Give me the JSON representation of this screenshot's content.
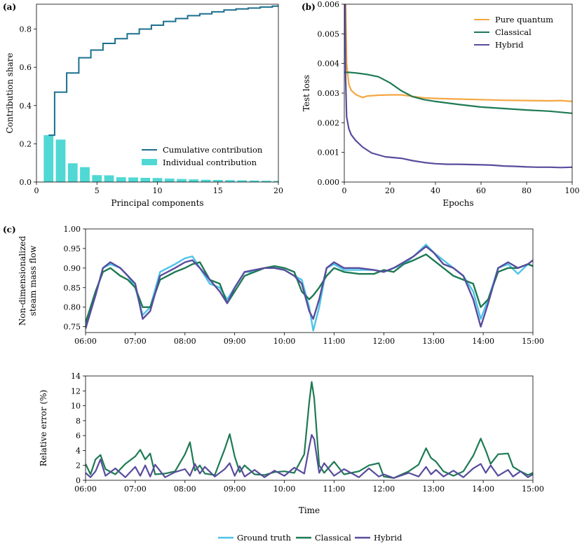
{
  "colors": {
    "cumulative": "#1b6f8f",
    "individual": "#4fd8d4",
    "pure_quantum": "#f5a742",
    "classical": "#1e7a53",
    "hybrid": "#584c9d",
    "ground_truth": "#4bc4e6"
  },
  "chart_data": [
    {
      "panel": "(a)",
      "type": "bar",
      "xlabel": "Principal components",
      "ylabel": "Contribution share",
      "xlim": [
        0,
        20
      ],
      "ylim": [
        0,
        0.93
      ],
      "xticks": [
        0,
        5,
        10,
        15,
        20
      ],
      "yticks": [
        0.0,
        0.2,
        0.4,
        0.6,
        0.8
      ],
      "ytick_labels": [
        "0.0",
        "0.2",
        "0.4",
        "0.6",
        "0.8"
      ],
      "components": [
        1,
        2,
        3,
        4,
        5,
        6,
        7,
        8,
        9,
        10,
        11,
        12,
        13,
        14,
        15,
        16,
        17,
        18,
        19,
        20
      ],
      "series": [
        {
          "name": "Cumulative contribution",
          "kind": "step",
          "values": [
            0.245,
            0.47,
            0.57,
            0.65,
            0.69,
            0.725,
            0.75,
            0.775,
            0.8,
            0.82,
            0.84,
            0.855,
            0.87,
            0.88,
            0.89,
            0.9,
            0.905,
            0.91,
            0.915,
            0.92
          ]
        },
        {
          "name": "Individual contribution",
          "kind": "bar",
          "values": [
            0.245,
            0.222,
            0.098,
            0.078,
            0.036,
            0.035,
            0.025,
            0.024,
            0.022,
            0.021,
            0.018,
            0.016,
            0.014,
            0.012,
            0.011,
            0.01,
            0.009,
            0.008,
            0.007,
            0.006
          ]
        }
      ],
      "legend_position": "lower-right"
    },
    {
      "panel": "(b)",
      "type": "line",
      "xlabel": "Epochs",
      "ylabel": "Test loss",
      "xlim": [
        0,
        100
      ],
      "ylim": [
        0,
        0.006
      ],
      "xticks": [
        0,
        20,
        40,
        60,
        80,
        100
      ],
      "yticks": [
        0.0,
        0.001,
        0.002,
        0.003,
        0.004,
        0.005,
        0.006
      ],
      "ytick_labels": [
        "0.000",
        "0.001",
        "0.002",
        "0.003",
        "0.004",
        "0.005",
        "0.006"
      ],
      "series": [
        {
          "name": "Pure quantum",
          "x": [
            0.5,
            1,
            2,
            3,
            5,
            8,
            10,
            15,
            20,
            25,
            30,
            35,
            40,
            50,
            60,
            70,
            80,
            90,
            95,
            100
          ],
          "y": [
            0.0065,
            0.004,
            0.0033,
            0.0031,
            0.00295,
            0.00285,
            0.0029,
            0.00293,
            0.00294,
            0.00294,
            0.00289,
            0.00284,
            0.00282,
            0.0028,
            0.00278,
            0.00276,
            0.00275,
            0.00274,
            0.00275,
            0.00272
          ]
        },
        {
          "name": "Classical",
          "x": [
            0,
            2,
            5,
            10,
            15,
            20,
            25,
            30,
            35,
            40,
            50,
            60,
            70,
            80,
            90,
            100
          ],
          "y": [
            0.0037,
            0.0037,
            0.00368,
            0.00363,
            0.00355,
            0.00335,
            0.00308,
            0.00288,
            0.00278,
            0.00272,
            0.00262,
            0.00253,
            0.00248,
            0.00243,
            0.00239,
            0.00232
          ]
        },
        {
          "name": "Hybrid",
          "x": [
            0.3,
            0.6,
            1,
            2,
            3,
            5,
            8,
            12,
            18,
            25,
            30,
            35,
            40,
            45,
            50,
            55,
            60,
            65,
            70,
            75,
            80,
            85,
            90,
            95,
            100
          ],
          "y": [
            0.0062,
            0.0035,
            0.0022,
            0.0018,
            0.0016,
            0.0014,
            0.00118,
            0.00098,
            0.00085,
            0.0008,
            0.00072,
            0.00066,
            0.00062,
            0.0006,
            0.0006,
            0.00059,
            0.00058,
            0.00057,
            0.00054,
            0.00053,
            0.00051,
            0.0005,
            0.0005,
            0.00049,
            0.0005
          ]
        }
      ],
      "legend_position": "upper-right"
    },
    {
      "panel": "(c)",
      "type": "line",
      "ylabel": "Non-dimensionalized steam mass flow",
      "xlim": [
        6,
        15
      ],
      "ylim": [
        0.735,
        1.0
      ],
      "xtick_labels": [
        "06:00",
        "07:00",
        "08:00",
        "09:00",
        "10:00",
        "11:00",
        "12:00",
        "13:00",
        "14:00",
        "15:00"
      ],
      "yticks": [
        0.75,
        0.8,
        0.85,
        0.9,
        0.95,
        1.0
      ],
      "ytick_labels": [
        "0.75",
        "0.80",
        "0.85",
        "0.90",
        "0.95",
        "1.00"
      ],
      "series": [
        {
          "name": "Ground truth",
          "x": [
            6,
            6.2,
            6.35,
            6.5,
            6.7,
            6.85,
            7,
            7.15,
            7.3,
            7.5,
            7.8,
            8,
            8.15,
            8.3,
            8.5,
            8.7,
            8.85,
            9,
            9.2,
            9.4,
            9.6,
            9.8,
            10,
            10.2,
            10.35,
            10.5,
            10.58,
            10.7,
            10.85,
            11,
            11.2,
            11.5,
            11.8,
            12,
            12.2,
            12.4,
            12.6,
            12.85,
            13,
            13.2,
            13.4,
            13.6,
            13.8,
            13.95,
            14.1,
            14.3,
            14.5,
            14.7,
            14.9,
            15
          ],
          "y": [
            0.75,
            0.83,
            0.9,
            0.91,
            0.9,
            0.88,
            0.85,
            0.78,
            0.8,
            0.89,
            0.91,
            0.925,
            0.93,
            0.9,
            0.86,
            0.85,
            0.82,
            0.85,
            0.89,
            0.89,
            0.9,
            0.9,
            0.895,
            0.88,
            0.87,
            0.8,
            0.74,
            0.8,
            0.9,
            0.91,
            0.895,
            0.895,
            0.895,
            0.89,
            0.9,
            0.91,
            0.93,
            0.96,
            0.94,
            0.92,
            0.9,
            0.88,
            0.84,
            0.77,
            0.82,
            0.9,
            0.91,
            0.885,
            0.91,
            0.905
          ]
        },
        {
          "name": "Classical",
          "x": [
            6,
            6.2,
            6.35,
            6.5,
            6.7,
            6.85,
            7,
            7.15,
            7.3,
            7.5,
            7.8,
            8,
            8.15,
            8.3,
            8.5,
            8.7,
            8.85,
            9,
            9.2,
            9.4,
            9.6,
            9.8,
            10,
            10.2,
            10.35,
            10.5,
            10.58,
            10.7,
            10.85,
            11,
            11.2,
            11.5,
            11.8,
            12,
            12.2,
            12.4,
            12.6,
            12.85,
            13,
            13.2,
            13.4,
            13.6,
            13.8,
            13.95,
            14.1,
            14.3,
            14.5,
            14.7,
            14.9,
            15
          ],
          "y": [
            0.76,
            0.84,
            0.89,
            0.9,
            0.88,
            0.87,
            0.85,
            0.8,
            0.8,
            0.87,
            0.89,
            0.9,
            0.91,
            0.915,
            0.87,
            0.86,
            0.81,
            0.84,
            0.88,
            0.89,
            0.9,
            0.905,
            0.9,
            0.89,
            0.84,
            0.82,
            0.83,
            0.85,
            0.88,
            0.9,
            0.89,
            0.885,
            0.885,
            0.895,
            0.89,
            0.91,
            0.92,
            0.935,
            0.92,
            0.9,
            0.88,
            0.87,
            0.86,
            0.8,
            0.82,
            0.89,
            0.9,
            0.9,
            0.91,
            0.905
          ]
        },
        {
          "name": "Hybrid",
          "x": [
            6,
            6.2,
            6.35,
            6.5,
            6.7,
            6.85,
            7,
            7.15,
            7.3,
            7.5,
            7.8,
            8,
            8.15,
            8.3,
            8.5,
            8.7,
            8.85,
            9,
            9.2,
            9.4,
            9.6,
            9.8,
            10,
            10.2,
            10.35,
            10.5,
            10.58,
            10.7,
            10.85,
            11,
            11.2,
            11.5,
            11.8,
            12,
            12.2,
            12.4,
            12.6,
            12.85,
            13,
            13.2,
            13.4,
            13.6,
            13.8,
            13.95,
            14.1,
            14.3,
            14.5,
            14.7,
            14.9,
            15
          ],
          "y": [
            0.745,
            0.83,
            0.9,
            0.915,
            0.9,
            0.88,
            0.86,
            0.77,
            0.79,
            0.88,
            0.9,
            0.915,
            0.92,
            0.9,
            0.87,
            0.84,
            0.81,
            0.85,
            0.89,
            0.895,
            0.9,
            0.9,
            0.895,
            0.88,
            0.86,
            0.79,
            0.77,
            0.82,
            0.9,
            0.915,
            0.9,
            0.9,
            0.895,
            0.89,
            0.9,
            0.915,
            0.93,
            0.955,
            0.94,
            0.91,
            0.9,
            0.88,
            0.82,
            0.75,
            0.81,
            0.9,
            0.915,
            0.9,
            0.91,
            0.92
          ]
        }
      ]
    },
    {
      "panel": "(c) lower",
      "type": "line",
      "xlabel": "Time",
      "ylabel": "Relative error (%)",
      "xlim": [
        6,
        15
      ],
      "ylim": [
        0,
        14
      ],
      "xtick_labels": [
        "06:00",
        "07:00",
        "08:00",
        "09:00",
        "10:00",
        "11:00",
        "12:00",
        "13:00",
        "14:00",
        "15:00"
      ],
      "yticks": [
        0,
        2,
        4,
        6,
        8,
        10,
        12,
        14
      ],
      "ytick_labels": [
        "0",
        "2",
        "4",
        "6",
        "8",
        "10",
        "12",
        "14"
      ],
      "series": [
        {
          "name": "Classical",
          "x": [
            6,
            6.1,
            6.2,
            6.3,
            6.4,
            6.6,
            6.8,
            7,
            7.1,
            7.2,
            7.3,
            7.4,
            7.6,
            7.8,
            8,
            8.1,
            8.2,
            8.3,
            8.4,
            8.6,
            8.8,
            8.9,
            9,
            9.1,
            9.2,
            9.4,
            9.6,
            9.8,
            10,
            10.2,
            10.4,
            10.5,
            10.55,
            10.6,
            10.7,
            10.8,
            11,
            11.2,
            11.5,
            11.7,
            11.9,
            12,
            12.2,
            12.5,
            12.7,
            12.85,
            12.95,
            13.05,
            13.2,
            13.4,
            13.6,
            13.8,
            13.95,
            14.05,
            14.15,
            14.3,
            14.5,
            14.6,
            14.75,
            14.9,
            15
          ],
          "y": [
            2.2,
            0.8,
            2.8,
            3.4,
            1.5,
            0.8,
            2.2,
            3.2,
            4.1,
            2.8,
            3.6,
            0.8,
            0.9,
            1.2,
            3.5,
            5.1,
            1.3,
            2.0,
            0.9,
            0.7,
            4.2,
            6.2,
            3.2,
            1.1,
            2.0,
            0.8,
            0.7,
            1.1,
            1.2,
            1.0,
            3.5,
            10.5,
            13.2,
            11.0,
            2.0,
            1.0,
            2.5,
            0.8,
            1.2,
            2.0,
            2.3,
            0.5,
            0.3,
            1.2,
            2.1,
            4.3,
            3.0,
            2.5,
            1.2,
            0.6,
            1.2,
            3.3,
            5.6,
            4.0,
            2.2,
            3.5,
            3.6,
            1.8,
            1.2,
            0.7,
            1.0
          ]
        },
        {
          "name": "Hybrid",
          "x": [
            6,
            6.1,
            6.2,
            6.3,
            6.4,
            6.6,
            6.8,
            7,
            7.1,
            7.2,
            7.3,
            7.4,
            7.6,
            7.8,
            8,
            8.1,
            8.2,
            8.3,
            8.4,
            8.6,
            8.8,
            8.9,
            9,
            9.1,
            9.2,
            9.4,
            9.6,
            9.8,
            10,
            10.2,
            10.4,
            10.5,
            10.55,
            10.6,
            10.7,
            10.8,
            11,
            11.2,
            11.5,
            11.7,
            11.9,
            12,
            12.2,
            12.5,
            12.7,
            12.85,
            12.95,
            13.05,
            13.2,
            13.4,
            13.6,
            13.8,
            13.95,
            14.05,
            14.15,
            14.3,
            14.5,
            14.6,
            14.75,
            14.9,
            15
          ],
          "y": [
            1.0,
            0.4,
            1.2,
            2.8,
            0.6,
            1.6,
            0.4,
            1.8,
            0.6,
            2.0,
            0.5,
            2.1,
            0.4,
            1.1,
            1.5,
            0.6,
            2.2,
            0.9,
            1.8,
            0.5,
            1.5,
            2.3,
            0.6,
            1.9,
            0.5,
            1.4,
            0.4,
            1.3,
            0.6,
            1.7,
            0.9,
            4.5,
            6.1,
            5.5,
            1.0,
            2.3,
            0.6,
            1.5,
            0.4,
            1.6,
            0.5,
            0.8,
            0.3,
            1.0,
            0.5,
            1.8,
            0.8,
            1.4,
            0.5,
            1.3,
            0.4,
            1.6,
            2.2,
            1.0,
            2.0,
            0.6,
            1.4,
            0.5,
            1.2,
            0.4,
            0.8
          ]
        }
      ]
    }
  ],
  "legend_c": {
    "items": [
      "Ground truth",
      "Classical",
      "Hybrid"
    ]
  }
}
